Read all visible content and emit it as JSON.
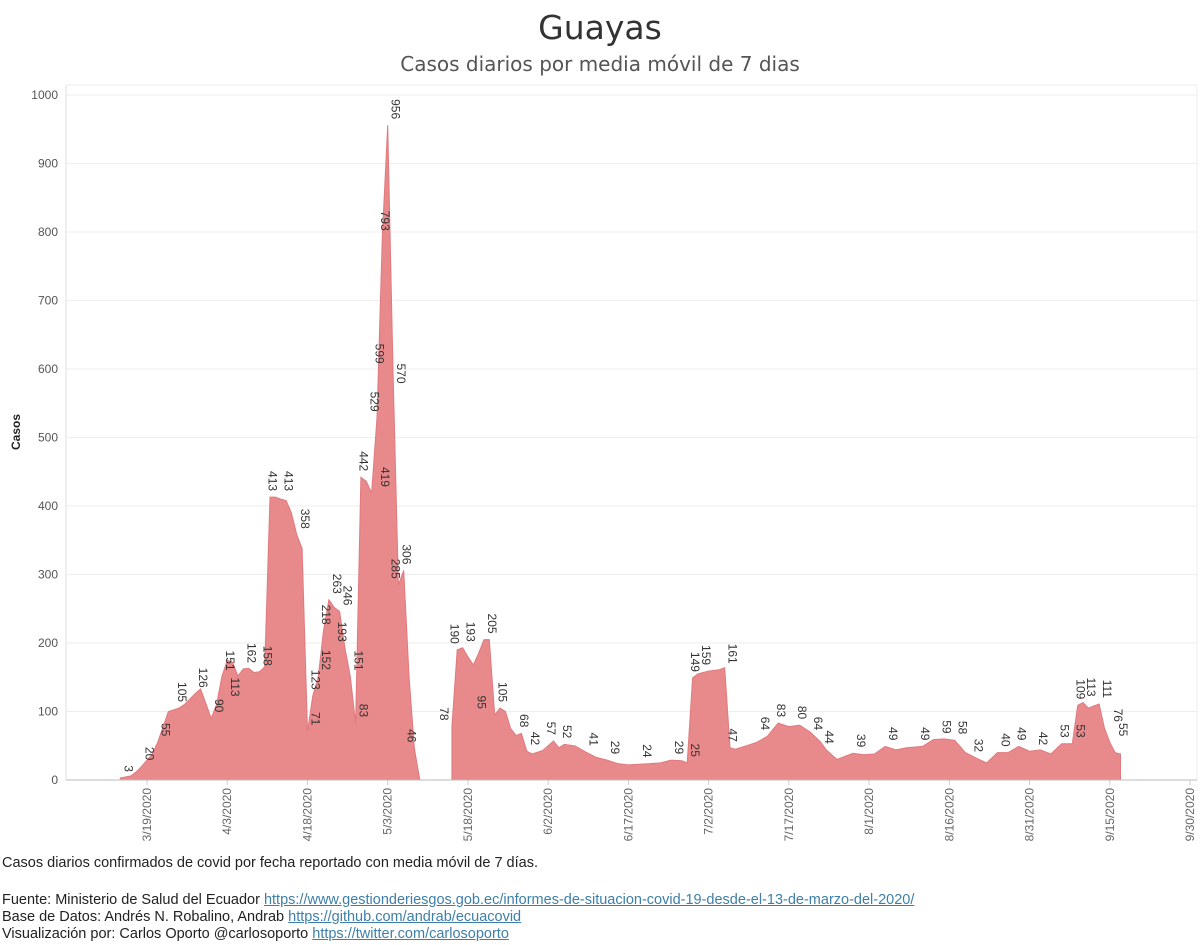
{
  "chart_data": {
    "type": "area",
    "title": "Guayas",
    "subtitle": "Casos diarios por media móvil de 7 dias",
    "ylabel": "Casos",
    "ylim": [
      0,
      1000
    ],
    "yticks": [
      0,
      100,
      200,
      300,
      400,
      500,
      600,
      700,
      800,
      900,
      1000
    ],
    "xticks": [
      "3/19/2020",
      "4/3/2020",
      "4/18/2020",
      "5/3/2020",
      "5/18/2020",
      "6/2/2020",
      "6/17/2020",
      "7/2/2020",
      "7/17/2020",
      "8/1/2020",
      "8/16/2020",
      "8/31/2020",
      "9/15/2020",
      "9/30/2020"
    ],
    "color": "#e8898c",
    "grid": "horizontal",
    "segments": [
      [
        [
          "3/14/2020",
          3
        ],
        [
          "3/16/2020",
          6
        ],
        [
          "3/17/2020",
          12
        ],
        [
          "3/18/2020",
          20
        ],
        [
          "3/20/2020",
          38
        ],
        [
          "3/21/2020",
          55
        ],
        [
          "3/23/2020",
          100
        ],
        [
          "3/25/2020",
          105
        ],
        [
          "3/26/2020",
          110
        ],
        [
          "3/28/2020",
          126
        ],
        [
          "3/29/2020",
          133
        ],
        [
          "3/30/2020",
          112
        ],
        [
          "3/31/2020",
          90
        ],
        [
          "4/1/2020",
          110
        ],
        [
          "4/2/2020",
          151
        ],
        [
          "4/3/2020",
          175
        ],
        [
          "4/4/2020",
          172
        ],
        [
          "4/5/2020",
          152
        ],
        [
          "4/6/2020",
          162
        ],
        [
          "4/7/2020",
          163
        ],
        [
          "4/8/2020",
          157
        ],
        [
          "4/9/2020",
          158
        ],
        [
          "4/10/2020",
          165
        ],
        [
          "4/11/2020",
          413
        ],
        [
          "4/12/2020",
          413
        ],
        [
          "4/13/2020",
          410
        ],
        [
          "4/14/2020",
          408
        ],
        [
          "4/15/2020",
          390
        ],
        [
          "4/16/2020",
          358
        ],
        [
          "4/17/2020",
          338
        ],
        [
          "4/18/2020",
          71
        ],
        [
          "4/19/2020",
          123
        ],
        [
          "4/20/2020",
          150
        ],
        [
          "4/21/2020",
          218
        ],
        [
          "4/22/2020",
          263
        ],
        [
          "4/23/2020",
          252
        ],
        [
          "4/24/2020",
          246
        ],
        [
          "4/25/2020",
          193
        ],
        [
          "4/26/2020",
          151
        ],
        [
          "4/27/2020",
          83
        ],
        [
          "4/28/2020",
          442
        ],
        [
          "4/29/2020",
          436
        ],
        [
          "4/30/2020",
          419
        ],
        [
          "5/1/2020",
          529
        ],
        [
          "5/2/2020",
          793
        ],
        [
          "5/3/2020",
          956
        ],
        [
          "5/4/2020",
          599
        ],
        [
          "5/5/2020",
          285
        ],
        [
          "5/6/2020",
          306
        ],
        [
          "5/7/2020",
          150
        ],
        [
          "5/8/2020",
          46
        ],
        [
          "5/9/2020",
          0
        ]
      ],
      [
        [
          "5/15/2020",
          78
        ],
        [
          "5/16/2020",
          190
        ],
        [
          "5/17/2020",
          193
        ],
        [
          "5/18/2020",
          180
        ],
        [
          "5/19/2020",
          168
        ],
        [
          "5/20/2020",
          185
        ],
        [
          "5/21/2020",
          205
        ],
        [
          "5/22/2020",
          205
        ],
        [
          "5/23/2020",
          95
        ],
        [
          "5/24/2020",
          105
        ],
        [
          "5/25/2020",
          100
        ],
        [
          "5/26/2020",
          75
        ],
        [
          "5/27/2020",
          65
        ],
        [
          "5/28/2020",
          68
        ],
        [
          "5/29/2020",
          42
        ],
        [
          "5/30/2020",
          38
        ],
        [
          "6/1/2020",
          43
        ],
        [
          "6/3/2020",
          57
        ],
        [
          "6/4/2020",
          47
        ],
        [
          "6/5/2020",
          52
        ],
        [
          "6/7/2020",
          50
        ],
        [
          "6/9/2020",
          41
        ],
        [
          "6/11/2020",
          33
        ],
        [
          "6/13/2020",
          29
        ],
        [
          "6/15/2020",
          24
        ],
        [
          "6/17/2020",
          22
        ],
        [
          "6/21/2020",
          24
        ],
        [
          "6/23/2020",
          25
        ],
        [
          "6/25/2020",
          29
        ],
        [
          "6/27/2020",
          28
        ],
        [
          "6/28/2020",
          25
        ],
        [
          "6/29/2020",
          149
        ],
        [
          "6/30/2020",
          155
        ],
        [
          "7/2/2020",
          159
        ],
        [
          "7/4/2020",
          161
        ],
        [
          "7/5/2020",
          164
        ],
        [
          "7/6/2020",
          47
        ],
        [
          "7/7/2020",
          45
        ],
        [
          "7/9/2020",
          50
        ],
        [
          "7/11/2020",
          55
        ],
        [
          "7/13/2020",
          64
        ],
        [
          "7/15/2020",
          83
        ],
        [
          "7/17/2020",
          78
        ],
        [
          "7/19/2020",
          80
        ],
        [
          "7/21/2020",
          70
        ],
        [
          "7/23/2020",
          55
        ],
        [
          "7/24/2020",
          44
        ],
        [
          "7/26/2020",
          30
        ],
        [
          "7/27/2020",
          33
        ],
        [
          "7/29/2020",
          39
        ],
        [
          "7/31/2020",
          37
        ],
        [
          "8/2/2020",
          38
        ],
        [
          "8/4/2020",
          49
        ],
        [
          "8/6/2020",
          44
        ],
        [
          "8/8/2020",
          47
        ],
        [
          "8/11/2020",
          49
        ],
        [
          "8/13/2020",
          59
        ],
        [
          "8/15/2020",
          60
        ],
        [
          "8/17/2020",
          58
        ],
        [
          "8/19/2020",
          40
        ],
        [
          "8/21/2020",
          32
        ],
        [
          "8/23/2020",
          25
        ],
        [
          "8/25/2020",
          40
        ],
        [
          "8/27/2020",
          40
        ],
        [
          "8/29/2020",
          49
        ],
        [
          "8/31/2020",
          42
        ],
        [
          "9/2/2020",
          44
        ],
        [
          "9/4/2020",
          38
        ],
        [
          "9/6/2020",
          53
        ],
        [
          "9/8/2020",
          53
        ],
        [
          "9/9/2020",
          109
        ],
        [
          "9/10/2020",
          113
        ],
        [
          "9/11/2020",
          105
        ],
        [
          "9/12/2020",
          108
        ],
        [
          "9/13/2020",
          111
        ],
        [
          "9/14/2020",
          76
        ],
        [
          "9/15/2020",
          55
        ],
        [
          "9/16/2020",
          40
        ],
        [
          "9/17/2020",
          38
        ]
      ]
    ],
    "labels": [
      [
        "3/14/2020",
        3,
        "3"
      ],
      [
        "3/18/2020",
        20,
        "20"
      ],
      [
        "3/21/2020",
        55,
        "55"
      ],
      [
        "3/24/2020",
        105,
        "105"
      ],
      [
        "3/28/2020",
        126,
        "126"
      ],
      [
        "3/31/2020",
        90,
        "90"
      ],
      [
        "4/2/2020",
        151,
        "151"
      ],
      [
        "4/3/2020",
        113,
        "113"
      ],
      [
        "4/6/2020",
        162,
        "162"
      ],
      [
        "4/9/2020",
        158,
        "158"
      ],
      [
        "4/10/2020",
        413,
        "413"
      ],
      [
        "4/13/2020",
        413,
        "413"
      ],
      [
        "4/16/2020",
        358,
        "358"
      ],
      [
        "4/18/2020",
        71,
        "71"
      ],
      [
        "4/18/2020",
        123,
        "123"
      ],
      [
        "4/20/2020",
        218,
        "218"
      ],
      [
        "4/20/2020",
        152,
        "152"
      ],
      [
        "4/22/2020",
        263,
        "263"
      ],
      [
        "4/23/2020",
        193,
        "193"
      ],
      [
        "4/24/2020",
        246,
        "246"
      ],
      [
        "4/26/2020",
        151,
        "151"
      ],
      [
        "4/27/2020",
        83,
        "83"
      ],
      [
        "4/27/2020",
        442,
        "442"
      ],
      [
        "4/29/2020",
        529,
        "529"
      ],
      [
        "4/30/2020",
        599,
        "599"
      ],
      [
        "5/1/2020",
        419,
        "419"
      ],
      [
        "5/1/2020",
        793,
        "793"
      ],
      [
        "5/3/2020",
        956,
        "956"
      ],
      [
        "5/3/2020",
        285,
        "285"
      ],
      [
        "5/4/2020",
        570,
        "570"
      ],
      [
        "5/5/2020",
        306,
        "306"
      ],
      [
        "5/6/2020",
        46,
        "46"
      ],
      [
        "5/12/2020",
        78,
        "78"
      ],
      [
        "5/14/2020",
        190,
        "190"
      ],
      [
        "5/17/2020",
        193,
        "193"
      ],
      [
        "5/19/2020",
        95,
        "95"
      ],
      [
        "5/21/2020",
        205,
        "205"
      ],
      [
        "5/23/2020",
        105,
        "105"
      ],
      [
        "5/27/2020",
        68,
        "68"
      ],
      [
        "5/29/2020",
        42,
        "42"
      ],
      [
        "6/1/2020",
        57,
        "57"
      ],
      [
        "6/4/2020",
        52,
        "52"
      ],
      [
        "6/9/2020",
        41,
        "41"
      ],
      [
        "6/13/2020",
        29,
        "29"
      ],
      [
        "6/19/2020",
        24,
        "24"
      ],
      [
        "6/25/2020",
        29,
        "29"
      ],
      [
        "6/28/2020",
        149,
        "149"
      ],
      [
        "6/28/2020",
        25,
        "25"
      ],
      [
        "6/30/2020",
        159,
        "159"
      ],
      [
        "7/5/2020",
        161,
        "161"
      ],
      [
        "7/5/2020",
        47,
        "47"
      ],
      [
        "7/11/2020",
        64,
        "64"
      ],
      [
        "7/14/2020",
        83,
        "83"
      ],
      [
        "7/18/2020",
        80,
        "80"
      ],
      [
        "7/21/2020",
        64,
        "64"
      ],
      [
        "7/23/2020",
        44,
        "44"
      ],
      [
        "7/29/2020",
        39,
        "39"
      ],
      [
        "8/4/2020",
        49,
        "49"
      ],
      [
        "8/10/2020",
        49,
        "49"
      ],
      [
        "8/14/2020",
        59,
        "59"
      ],
      [
        "8/17/2020",
        58,
        "58"
      ],
      [
        "8/20/2020",
        32,
        "32"
      ],
      [
        "8/25/2020",
        40,
        "40"
      ],
      [
        "8/28/2020",
        49,
        "49"
      ],
      [
        "9/1/2020",
        42,
        "42"
      ],
      [
        "9/5/2020",
        53,
        "53"
      ],
      [
        "9/8/2020",
        109,
        "109"
      ],
      [
        "9/8/2020",
        53,
        "53"
      ],
      [
        "9/10/2020",
        113,
        "113"
      ],
      [
        "9/13/2020",
        111,
        "111"
      ],
      [
        "9/15/2020",
        76,
        "76"
      ],
      [
        "9/16/2020",
        55,
        "55"
      ]
    ]
  },
  "footer": {
    "note": "Casos diarios confirmados de covid por fecha reportado con media móvil de 7 días.",
    "source_prefix": "Fuente: Ministerio de Salud del Ecuador ",
    "source_link": "https://www.gestionderiesgos.gob.ec/informes-de-situacion-covid-19-desde-el-13-de-marzo-del-2020/",
    "db_prefix": "Base de Datos: Andrés N. Robalino, Andrab ",
    "db_link": "https://github.com/andrab/ecuacovid",
    "viz_prefix": "Visualización por: Carlos Oporto @carlosoporto ",
    "viz_link": "https://twitter.com/carlosoporto"
  }
}
